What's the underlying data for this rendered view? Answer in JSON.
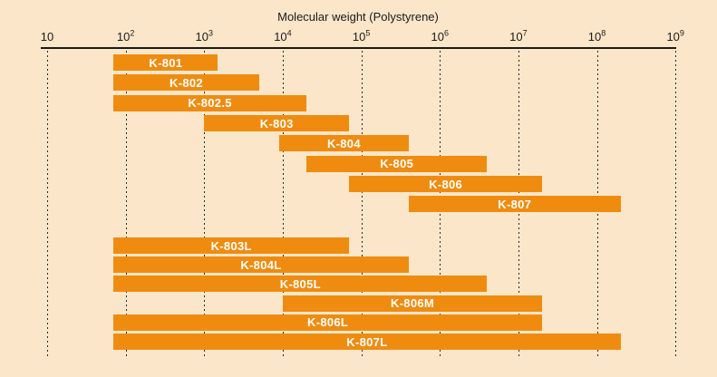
{
  "chart_data": {
    "type": "bar",
    "subtype": "horizontal-log-range-bars",
    "title": "Molecular weight (Polystyrene)",
    "xscale": "log",
    "xlim": [
      10,
      1000000000
    ],
    "x_tick_exponents": [
      1,
      2,
      3,
      4,
      5,
      6,
      7,
      8,
      9
    ],
    "x_tick_labels": [
      "10",
      "10^2",
      "10^3",
      "10^4",
      "10^5",
      "10^6",
      "10^7",
      "10^8",
      "10^9"
    ],
    "grid": "vertical-dashed",
    "legend": "none",
    "bar_color": "#ef8c10",
    "background_color": "#fbe6c9",
    "label_color": "#ffffff",
    "axis_color": "#1a1a1a",
    "series": [
      {
        "label": "K-801",
        "range": [
          70,
          1500
        ],
        "group": 0
      },
      {
        "label": "K-802",
        "range": [
          70,
          5000
        ],
        "group": 0
      },
      {
        "label": "K-802.5",
        "range": [
          70,
          20000
        ],
        "group": 0
      },
      {
        "label": "K-803",
        "range": [
          1000,
          70000
        ],
        "group": 0
      },
      {
        "label": "K-804",
        "range": [
          9000,
          400000
        ],
        "group": 0
      },
      {
        "label": "K-805",
        "range": [
          20000,
          4000000
        ],
        "group": 0
      },
      {
        "label": "K-806",
        "range": [
          70000,
          20000000
        ],
        "group": 0
      },
      {
        "label": "K-807",
        "range": [
          400000,
          200000000
        ],
        "group": 0
      },
      {
        "label": "K-803L",
        "range": [
          70,
          70000
        ],
        "group": 1
      },
      {
        "label": "K-804L",
        "range": [
          70,
          400000
        ],
        "group": 1
      },
      {
        "label": "K-805L",
        "range": [
          70,
          4000000
        ],
        "group": 1
      },
      {
        "label": "K-806M",
        "range": [
          10000,
          20000000
        ],
        "group": 1
      },
      {
        "label": "K-806L",
        "range": [
          70,
          20000000
        ],
        "group": 1
      },
      {
        "label": "K-807L",
        "range": [
          70,
          200000000
        ],
        "group": 1
      }
    ]
  }
}
